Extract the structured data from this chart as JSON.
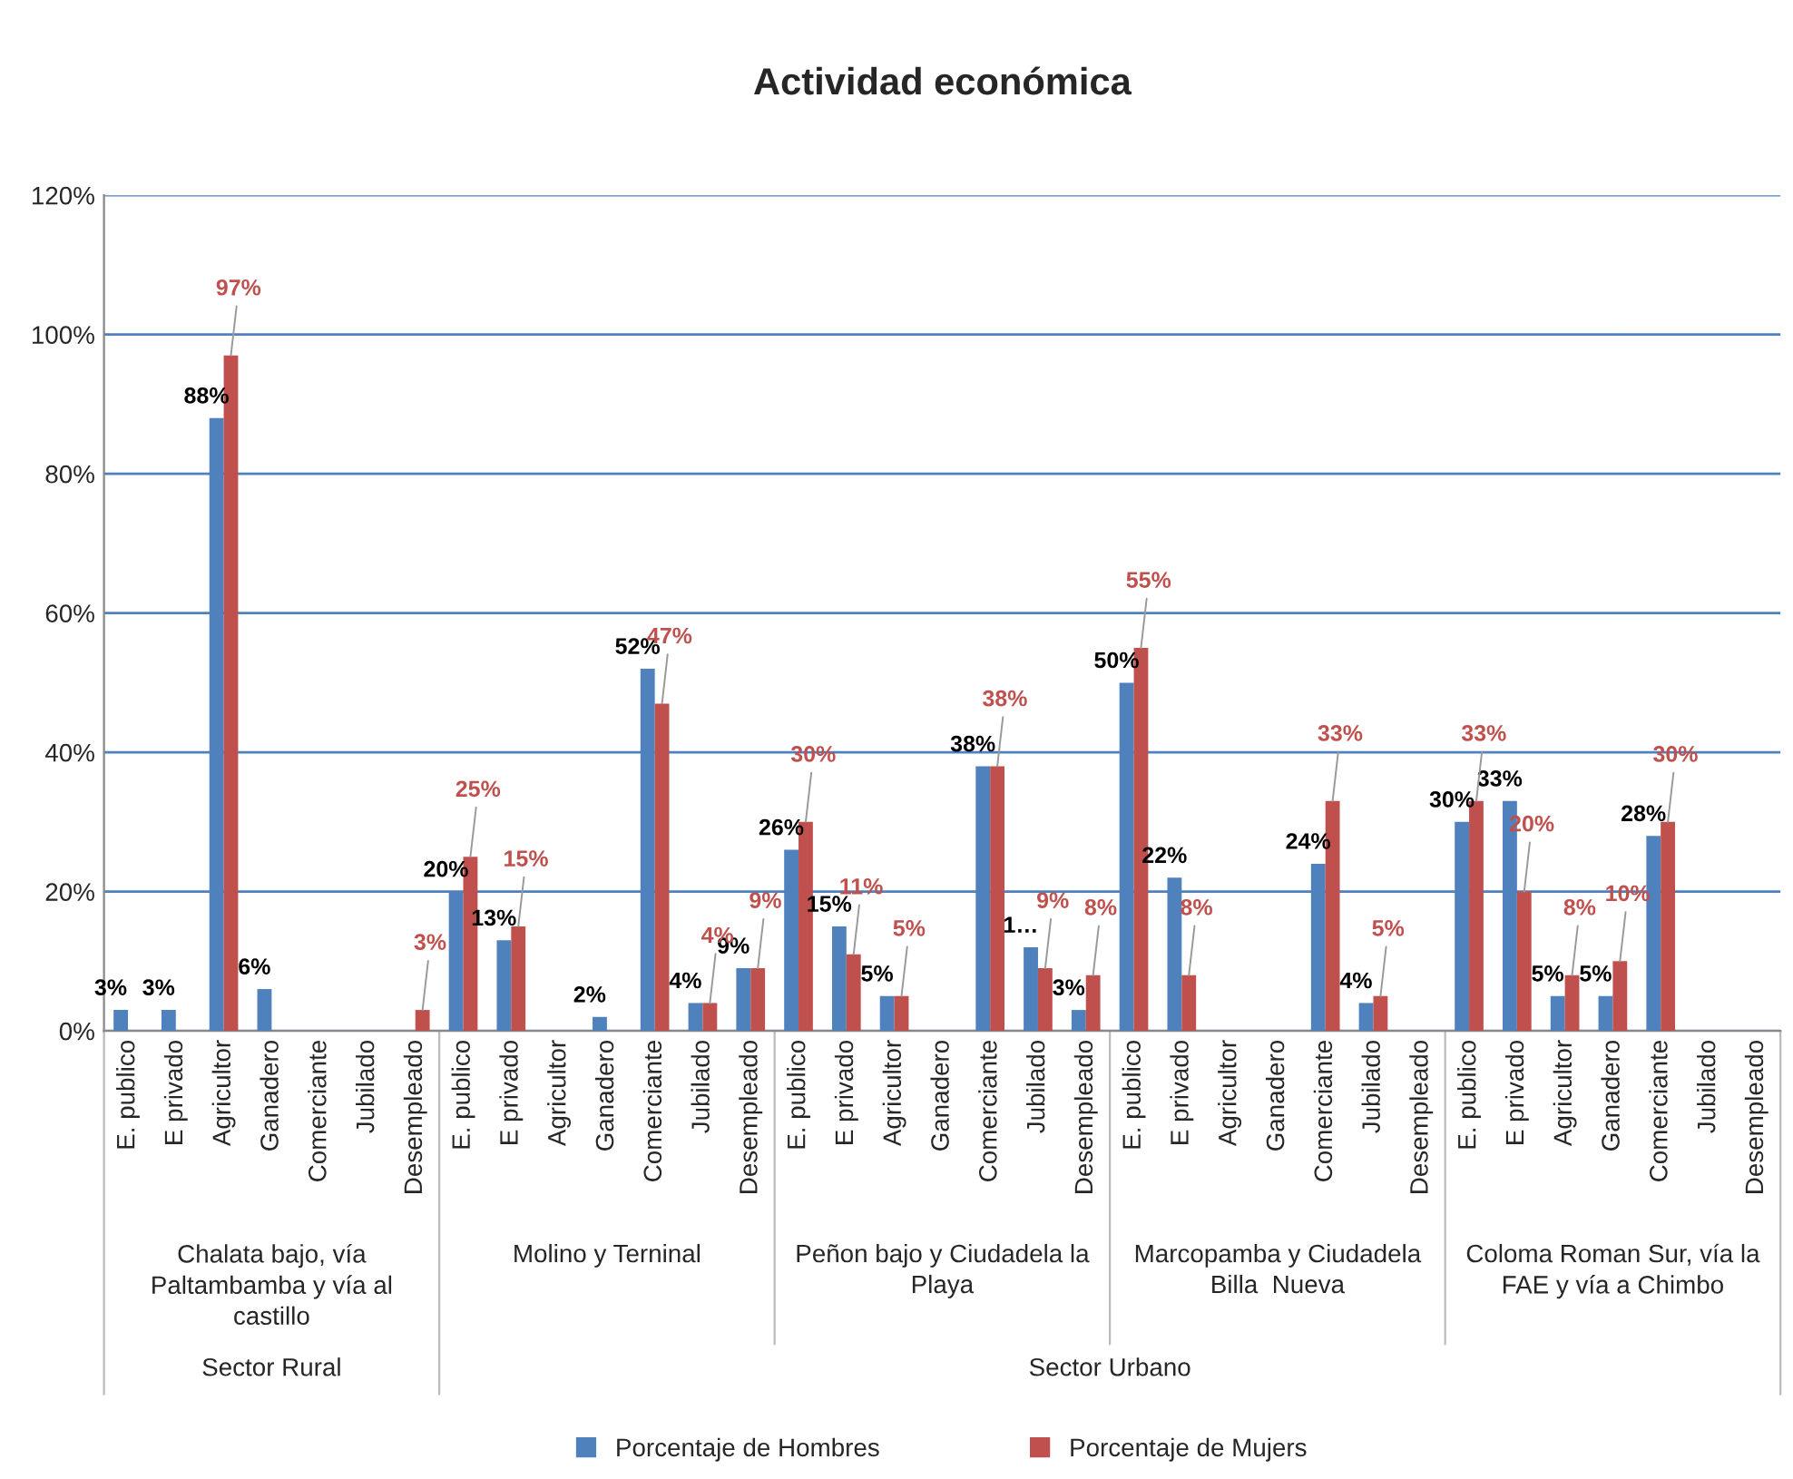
{
  "chart_data": {
    "type": "bar",
    "title": "Actividad económica",
    "categories": [
      "E. publico",
      "E privado",
      "Agricultor",
      "Ganadero",
      "Comerciante",
      "Jubilado",
      "Desempleado",
      "E. publico",
      "E privado",
      "Agricultor",
      "Ganadero",
      "Comerciante",
      "Jubilado",
      "Desempleado",
      "E. publico",
      "E privado",
      "Agricultor",
      "Ganadero",
      "Comerciante",
      "Jubilado",
      "Desempleado",
      "E. publico",
      "E privado",
      "Agricultor",
      "Ganadero",
      "Comerciante",
      "Jubilado",
      "Desempleado",
      "E. publico",
      "E privado",
      "Agricultor",
      "Ganadero",
      "Comerciante",
      "Jubilado",
      "Desempleado"
    ],
    "series": [
      {
        "name": "Porcentaje de Hombres",
        "color": "#4f81bd",
        "values": [
          3,
          3,
          88,
          6,
          null,
          null,
          null,
          20,
          13,
          null,
          2,
          52,
          4,
          9,
          26,
          15,
          5,
          null,
          38,
          12,
          3,
          50,
          22,
          null,
          null,
          24,
          4,
          null,
          30,
          33,
          5,
          5,
          28,
          null,
          null
        ],
        "value_labels": [
          "3%",
          "3%",
          "88%",
          "6%",
          null,
          null,
          null,
          "20%",
          "13%",
          null,
          "2%",
          "52%",
          "4%",
          "9%",
          "26%",
          "15%",
          "5%",
          null,
          "38%",
          "1…",
          "3%",
          "50%",
          "22%",
          null,
          null,
          "24%",
          "4%",
          null,
          "30%",
          "33%",
          "5%",
          "5%",
          "28%",
          null,
          null
        ]
      },
      {
        "name": "Porcentaje de Mujers",
        "color": "#c0504d",
        "values": [
          null,
          null,
          97,
          null,
          null,
          null,
          3,
          25,
          15,
          null,
          null,
          47,
          4,
          9,
          30,
          11,
          5,
          null,
          38,
          9,
          8,
          55,
          8,
          null,
          null,
          33,
          5,
          null,
          33,
          20,
          8,
          10,
          30,
          null,
          null
        ],
        "value_labels": [
          null,
          null,
          "97%",
          null,
          null,
          null,
          "3%",
          "25%",
          "15%",
          null,
          null,
          "47%",
          "4%",
          "9%",
          "30%",
          "11%",
          "5%",
          null,
          "38%",
          "9%",
          "8%",
          "55%",
          "8%",
          null,
          null,
          "33%",
          "5%",
          null,
          "33%",
          "20%",
          "8%",
          "10%",
          "30%",
          null,
          null
        ]
      }
    ],
    "ylim": [
      0,
      120
    ],
    "yticks": [
      {
        "value": 0,
        "label": "0%"
      },
      {
        "value": 20,
        "label": "20%"
      },
      {
        "value": 40,
        "label": "40%"
      },
      {
        "value": 60,
        "label": "60%"
      },
      {
        "value": 80,
        "label": "80%"
      },
      {
        "value": 100,
        "label": "100%"
      },
      {
        "value": 120,
        "label": "120%"
      }
    ],
    "grid": "y",
    "legend": "bottom",
    "annotations": [
      "Chalata bajo, vía\nPaltambamba y vía al\ncastillo",
      "Molino y Terninal",
      "Peñon bajo y Ciudadela la\nPlaya",
      "Marcopamba y Ciudadela\nBilla  Nueva",
      "Coloma Roman Sur, vía la\nFAE y vía a Chimbo",
      "Sector Rural",
      "Sector Urbano"
    ]
  }
}
